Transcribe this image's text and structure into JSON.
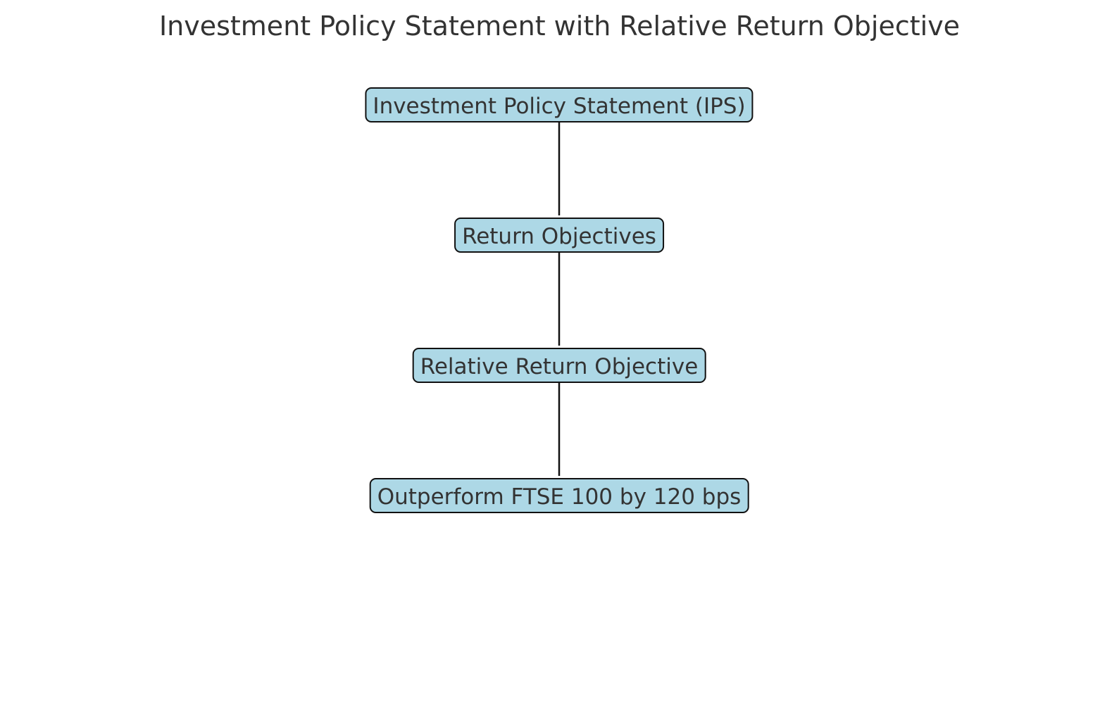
{
  "title": "Investment Policy Statement with Relative Return Objective",
  "nodes": [
    {
      "id": "ips",
      "label": "Investment Policy Statement (IPS)"
    },
    {
      "id": "return-objectives",
      "label": "Return Objectives"
    },
    {
      "id": "relative-return-objective",
      "label": "Relative Return Objective"
    },
    {
      "id": "outperform-ftse",
      "label": "Outperform FTSE 100 by 120 bps"
    }
  ],
  "edges": [
    {
      "from": "ips",
      "to": "return-objectives"
    },
    {
      "from": "return-objectives",
      "to": "relative-return-objective"
    },
    {
      "from": "relative-return-objective",
      "to": "outperform-ftse"
    }
  ],
  "colors": {
    "node_fill": "#add8e6",
    "node_border": "#111111",
    "text": "#333333",
    "edge": "#111111"
  }
}
